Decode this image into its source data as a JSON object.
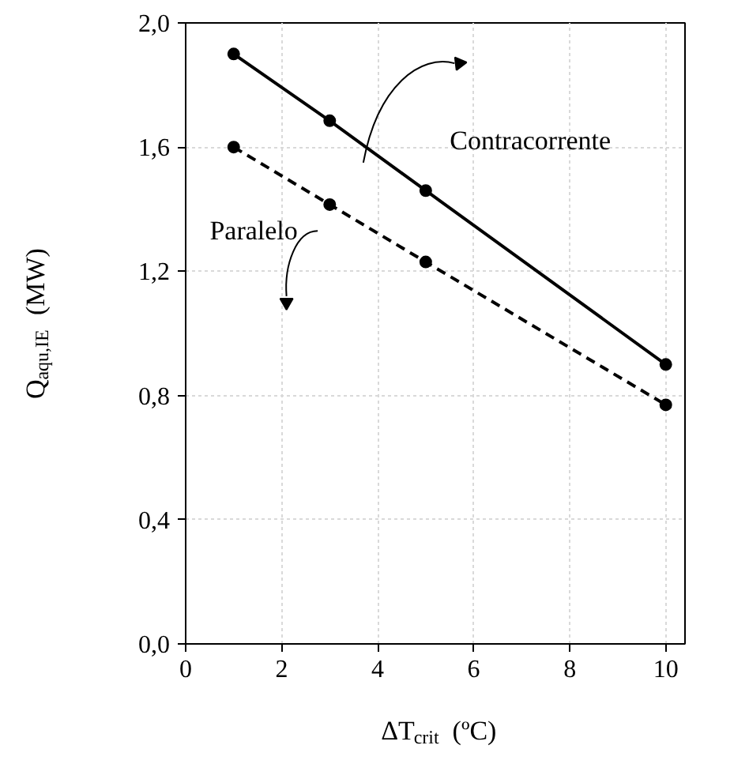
{
  "chart_data": {
    "type": "line",
    "xlabel": "ΔT$_{crit}$ (ºC)",
    "ylabel": "Q$_{aqu,IE}$ (MW)",
    "x": [
      1,
      3,
      5,
      10
    ],
    "series": [
      {
        "name": "Contracorrente",
        "color": "#000000",
        "values": [
          1.9,
          1.685,
          1.46,
          0.9
        ],
        "line_style": "solid"
      },
      {
        "name": "Paralelo",
        "color": "#000000",
        "values": [
          1.6,
          1.415,
          1.23,
          0.77
        ],
        "line_style": "dashed"
      }
    ],
    "xlim": [
      0,
      10.4
    ],
    "ylim": [
      0,
      2.0
    ],
    "xticks": [
      0,
      2,
      4,
      6,
      8,
      10
    ],
    "yticks": [
      {
        "value": 0,
        "label": "0,0"
      },
      {
        "value": 0.4,
        "label": "0,4"
      },
      {
        "value": 0.8,
        "label": "0,8"
      },
      {
        "value": 1.2,
        "label": "1,2"
      },
      {
        "value": 1.6,
        "label": "1,6"
      },
      {
        "value": 2.0,
        "label": "2,0"
      }
    ],
    "grid": true,
    "marker": "circle",
    "legend": false
  }
}
